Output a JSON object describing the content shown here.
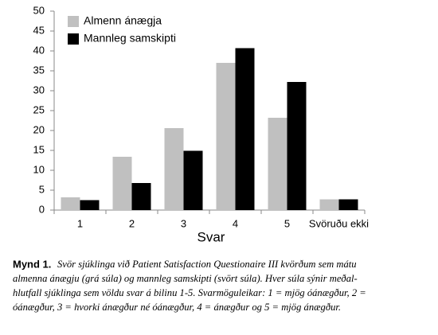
{
  "chart_data": {
    "type": "bar",
    "categories": [
      "1",
      "2",
      "3",
      "4",
      "5",
      "Svöruðu ekki"
    ],
    "series": [
      {
        "name": "Almenn ánægja",
        "color": "#c0c0c0",
        "values": [
          3.2,
          13.4,
          20.6,
          37,
          23.2,
          2.7
        ]
      },
      {
        "name": "Mannleg samskipti",
        "color": "#000000",
        "values": [
          2.5,
          6.8,
          14.9,
          40.7,
          32.2,
          2.7
        ]
      }
    ],
    "x_label": "Svar",
    "ylim": [
      0,
      50
    ],
    "yticks": [
      0,
      5,
      10,
      15,
      20,
      25,
      30,
      35,
      40,
      45,
      50
    ],
    "grid": false,
    "legend": "top-left"
  },
  "caption": {
    "label": "Mynd 1.",
    "lines": [
      "Svör sjúklinga við Patient Satisfaction Questionaire III kvörðum sem mátu",
      "almenna ánægju (grá súla) og mannleg samskipti (svört súla). Hver súla sýnir meðal-",
      "hlutfall sjúklinga sem völdu svar á bilinu 1-5. Svarmöguleikar: 1 = mjög óánægður, 2 =",
      "óánægður, 3 = hvorki ánægður né óánægður, 4 = ánægður og 5 = mjög ánægður."
    ]
  }
}
